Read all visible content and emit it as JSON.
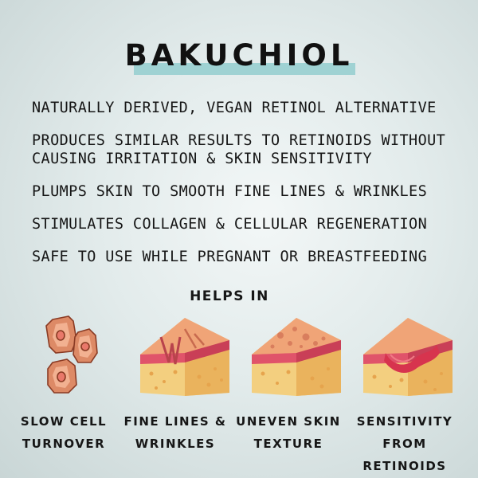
{
  "title": "BAKUCHIOL",
  "benefits": [
    "NATURALLY DERIVED, VEGAN RETINOL ALTERNATIVE",
    "PRODUCES SIMILAR RESULTS TO RETINOIDS WITHOUT\nCAUSING IRRITATION & SKIN SENSITIVITY",
    "PLUMPS SKIN TO SMOOTH FINE LINES & WRINKLES",
    "STIMULATES COLLAGEN & CELLULAR REGENERATION",
    "SAFE TO USE WHILE PREGNANT OR BREASTFEEDING"
  ],
  "helps_heading": "HELPS IN",
  "conditions": [
    {
      "label": "SLOW CELL\nTURNOVER",
      "icon": "skin-cells-icon"
    },
    {
      "label": "FINE LINES &\nWRINKLES",
      "icon": "wrinkled-skin-icon"
    },
    {
      "label": "UNEVEN SKIN\nTEXTURE",
      "icon": "uneven-skin-icon"
    },
    {
      "label": "SENSITIVITY\nFROM RETINOIDS",
      "icon": "irritated-skin-icon"
    }
  ],
  "colors": {
    "accent_bar": "#9fd2d3",
    "skin_top": "#f0a477",
    "dermis": "#e0536a",
    "subcutis": "#f3cf7f"
  }
}
